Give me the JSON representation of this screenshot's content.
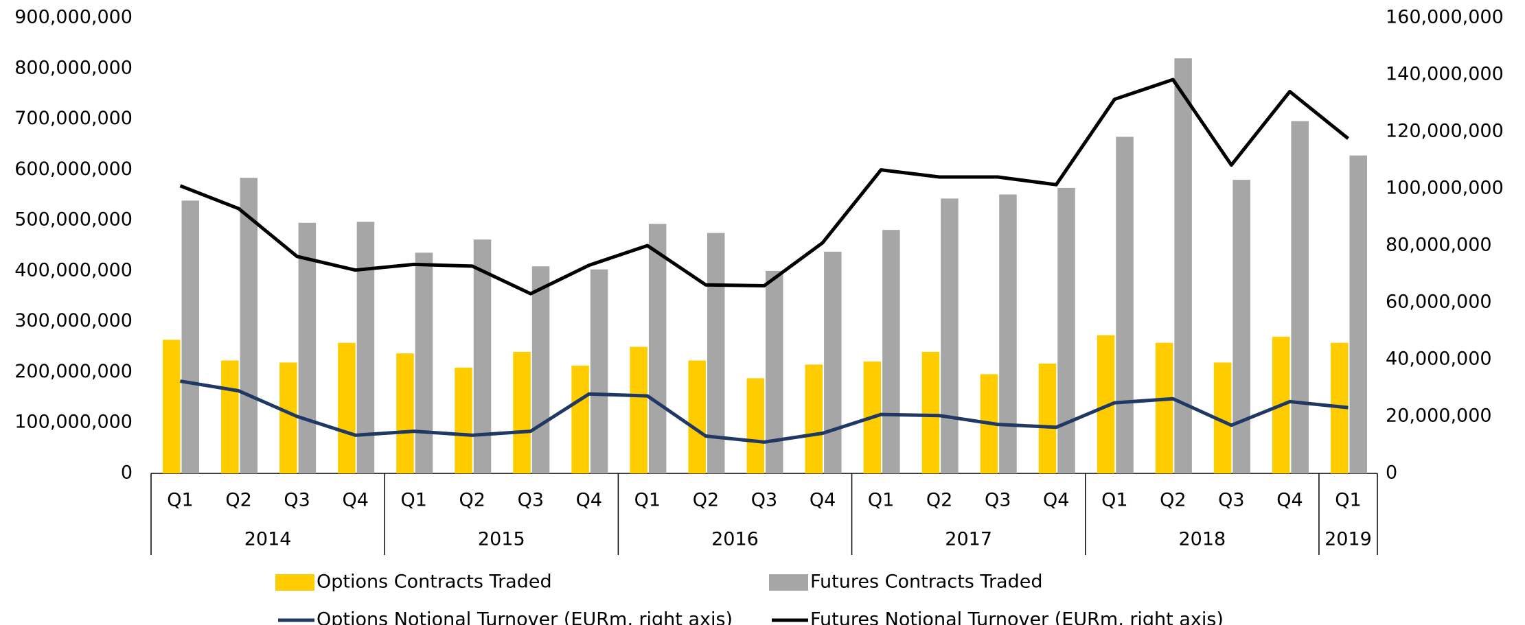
{
  "chart_data": {
    "type": "bar-line",
    "categories": [
      "Q1",
      "Q2",
      "Q3",
      "Q4",
      "Q1",
      "Q2",
      "Q3",
      "Q4",
      "Q1",
      "Q2",
      "Q3",
      "Q4",
      "Q1",
      "Q2",
      "Q3",
      "Q4",
      "Q1",
      "Q2",
      "Q3",
      "Q4",
      "Q1"
    ],
    "category_groups": [
      {
        "label": "2014",
        "span": 4
      },
      {
        "label": "2015",
        "span": 4
      },
      {
        "label": "2016",
        "span": 4
      },
      {
        "label": "2017",
        "span": 4
      },
      {
        "label": "2018",
        "span": 4
      },
      {
        "label": "2019",
        "span": 1
      }
    ],
    "series": [
      {
        "name": "Options Contracts Traded",
        "kind": "bar",
        "color": "#ffcc00",
        "values": [
          264000000,
          223000000,
          219000000,
          258000000,
          237000000,
          209000000,
          240000000,
          213000000,
          250000000,
          223000000,
          188000000,
          215000000,
          221000000,
          240000000,
          196000000,
          217000000,
          273000000,
          258000000,
          219000000,
          270000000,
          258000000
        ]
      },
      {
        "name": "Futures Contracts Traded",
        "kind": "bar",
        "color": "#a6a6a6",
        "values": [
          539000000,
          584000000,
          495000000,
          497000000,
          436000000,
          462000000,
          409000000,
          403000000,
          493000000,
          475000000,
          400000000,
          438000000,
          481000000,
          543000000,
          551000000,
          564000000,
          665000000,
          820000000,
          580000000,
          696000000,
          628000000
        ]
      },
      {
        "name": "Options Notional Turnover (EURm, right axis)",
        "kind": "line",
        "axis": "y2",
        "color": "#203864",
        "values": [
          32400000,
          29000000,
          20000000,
          13400000,
          14800000,
          13400000,
          14800000,
          27900000,
          27200000,
          13100000,
          11000000,
          14100000,
          20700000,
          20300000,
          17200000,
          16200000,
          24800000,
          26200000,
          16900000,
          25200000,
          23100000
        ]
      },
      {
        "name": "Futures Notional Turnover (EURm, right axis)",
        "kind": "line",
        "axis": "y2",
        "color": "#000000",
        "values": [
          101000000,
          93000000,
          76200000,
          71400000,
          73400000,
          72800000,
          63100000,
          73100000,
          80000000,
          66200000,
          65900000,
          81000000,
          106600000,
          104100000,
          104100000,
          101400000,
          131400000,
          138300000,
          108300000,
          134100000,
          117600000
        ]
      }
    ],
    "ylim": [
      0,
      900000000
    ],
    "yticks": [
      0,
      {
        "value": 100000000,
        "label": "100,000,000"
      },
      {
        "value": 200000000,
        "label": "200,000,000"
      },
      {
        "value": 300000000,
        "label": "300,000,000"
      },
      {
        "value": 400000000,
        "label": "400,000,000"
      },
      {
        "value": 500000000,
        "label": "500,000,000"
      },
      {
        "value": 600000000,
        "label": "600,000,000"
      },
      {
        "value": 700000000,
        "label": "700,000,000"
      },
      {
        "value": 800000000,
        "label": "800,000,000"
      },
      {
        "value": 900000000,
        "label": "900,000,000"
      }
    ],
    "y2lim": [
      0,
      160000000
    ],
    "y2ticks": [
      0,
      {
        "value": 20000000,
        "label": "20,000,000"
      },
      {
        "value": 40000000,
        "label": "40,000,000"
      },
      {
        "value": 60000000,
        "label": "60,000,000"
      },
      {
        "value": 80000000,
        "label": "80,000,000"
      },
      {
        "value": 100000000,
        "label": "100,000,000"
      },
      {
        "value": 120000000,
        "label": "120,000,000"
      },
      {
        "value": 140000000,
        "label": "140,000,000"
      },
      {
        "value": 160000000,
        "label": "160,000,000"
      }
    ],
    "grid": false,
    "legend": "bottom"
  }
}
